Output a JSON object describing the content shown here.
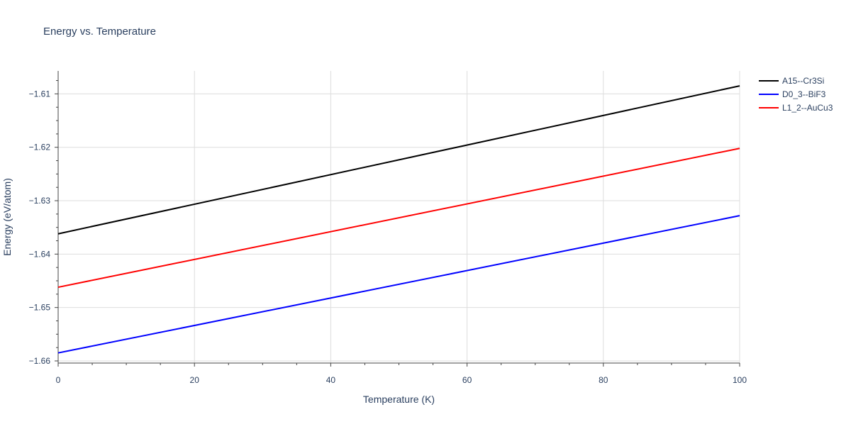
{
  "chart_data": {
    "type": "line",
    "title": "Energy vs. Temperature",
    "xlabel": "Temperature (K)",
    "ylabel": "Energy (eV/atom)",
    "xlim": [
      0,
      100
    ],
    "ylim": [
      -1.6604,
      -1.6057
    ],
    "x_ticks": [
      0,
      20,
      40,
      60,
      80,
      100
    ],
    "x_tick_labels": [
      "0",
      "20",
      "40",
      "60",
      "80",
      "100"
    ],
    "y_ticks": [
      -1.66,
      -1.65,
      -1.64,
      -1.63,
      -1.62,
      -1.61
    ],
    "y_tick_labels": [
      "−1.66",
      "−1.65",
      "−1.64",
      "−1.63",
      "−1.62",
      "−1.61"
    ],
    "grid": true,
    "legend_position": "top-right",
    "series": [
      {
        "name": "A15--Cr3Si",
        "color": "#000000",
        "x": [
          0,
          100
        ],
        "y": [
          -1.6362,
          -1.6085
        ]
      },
      {
        "name": "D0_3--BiF3",
        "color": "#0000ff",
        "x": [
          0,
          100
        ],
        "y": [
          -1.6585,
          -1.6328
        ]
      },
      {
        "name": "L1_2--AuCu3",
        "color": "#ff0000",
        "x": [
          0,
          100
        ],
        "y": [
          -1.6462,
          -1.6202
        ]
      }
    ]
  }
}
